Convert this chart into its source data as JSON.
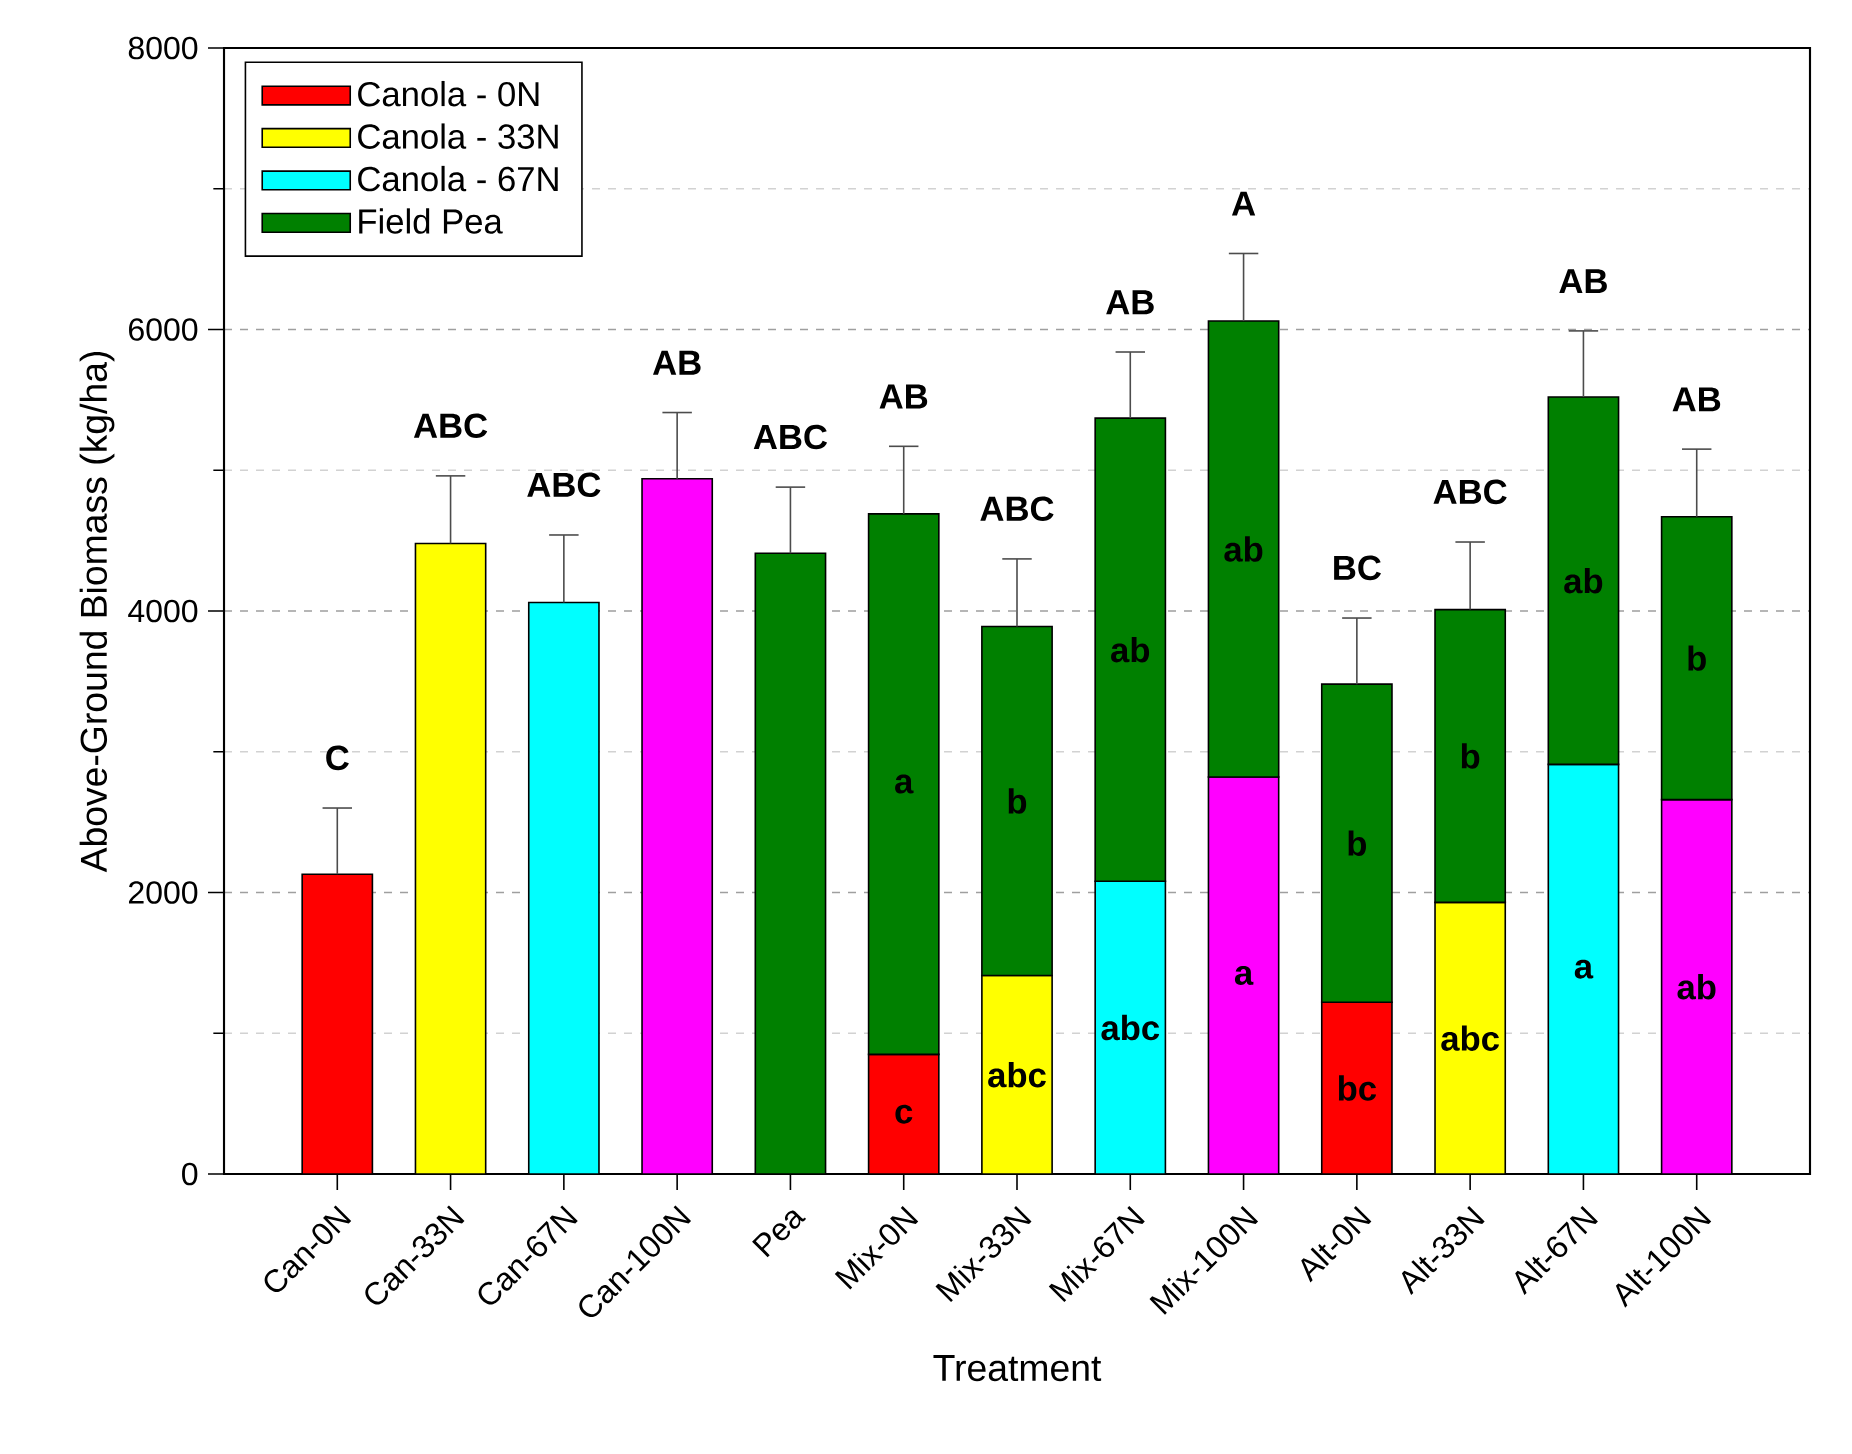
{
  "chart_data": {
    "type": "bar",
    "stacked": true,
    "xlabel": "Treatment",
    "ylabel": "Above-Ground Biomass (kg/ha)",
    "categories": [
      "Can-0N",
      "Can-33N",
      "Can-67N",
      "Can-100N",
      "Pea",
      "Mix-0N",
      "Mix-33N",
      "Mix-67N",
      "Mix-100N",
      "Alt-0N",
      "Alt-33N",
      "Alt-67N",
      "Alt-100N"
    ],
    "series": [
      {
        "name": "Canola - 0N",
        "color": "#ff0000",
        "values": [
          2130,
          null,
          null,
          null,
          null,
          850,
          null,
          null,
          null,
          1220,
          null,
          null,
          null
        ],
        "errors": [
          470,
          null,
          null,
          null,
          null,
          null,
          null,
          null,
          null,
          null,
          null,
          null,
          null
        ],
        "value_labels": [
          null,
          null,
          null,
          null,
          null,
          "c",
          null,
          null,
          null,
          "bc",
          null,
          null,
          null
        ]
      },
      {
        "name": "Canola - 33N",
        "color": "#ffff00",
        "values": [
          null,
          4480,
          null,
          null,
          null,
          null,
          1410,
          null,
          null,
          null,
          1930,
          null,
          null
        ],
        "errors": [
          null,
          480,
          null,
          null,
          null,
          null,
          null,
          null,
          null,
          null,
          null,
          null,
          null
        ],
        "value_labels": [
          null,
          null,
          null,
          null,
          null,
          null,
          "abc",
          null,
          null,
          null,
          "abc",
          null,
          null
        ]
      },
      {
        "name": "Canola - 67N",
        "color": "#00ffff",
        "values": [
          null,
          null,
          4060,
          null,
          null,
          null,
          null,
          2080,
          null,
          null,
          null,
          2910,
          null
        ],
        "errors": [
          null,
          null,
          480,
          null,
          null,
          null,
          null,
          null,
          null,
          null,
          null,
          null,
          null
        ],
        "value_labels": [
          null,
          null,
          null,
          null,
          null,
          null,
          null,
          "abc",
          null,
          null,
          null,
          "a",
          null
        ]
      },
      {
        "color": "#ff00ff",
        "values": [
          null,
          null,
          null,
          4940,
          null,
          null,
          null,
          null,
          2820,
          null,
          null,
          null,
          2660
        ],
        "errors": [
          null,
          null,
          null,
          470,
          null,
          null,
          null,
          null,
          null,
          null,
          null,
          null,
          null
        ],
        "value_labels": [
          null,
          null,
          null,
          null,
          null,
          null,
          null,
          null,
          "a",
          null,
          null,
          null,
          "ab"
        ]
      },
      {
        "name": "Field Pea",
        "color": "#008000",
        "values": [
          null,
          null,
          null,
          null,
          4410,
          3840,
          2480,
          3290,
          3240,
          2260,
          2080,
          2610,
          2010
        ],
        "errors": [
          null,
          null,
          null,
          null,
          470,
          480,
          480,
          470,
          480,
          470,
          480,
          470,
          480
        ],
        "value_labels": [
          null,
          null,
          null,
          null,
          null,
          "a",
          "b",
          "ab",
          "ab",
          "b",
          "b",
          "ab",
          "b"
        ]
      }
    ],
    "totals": [
      "C",
      "ABC",
      "ABC",
      "AB",
      "ABC",
      "AB",
      "ABC",
      "AB",
      "A",
      "BC",
      "ABC",
      "AB",
      "AB"
    ],
    "ylim": [
      0,
      8000
    ],
    "yticks": [
      0,
      2000,
      4000,
      6000,
      8000
    ],
    "grid": "y",
    "legend": "top left"
  }
}
